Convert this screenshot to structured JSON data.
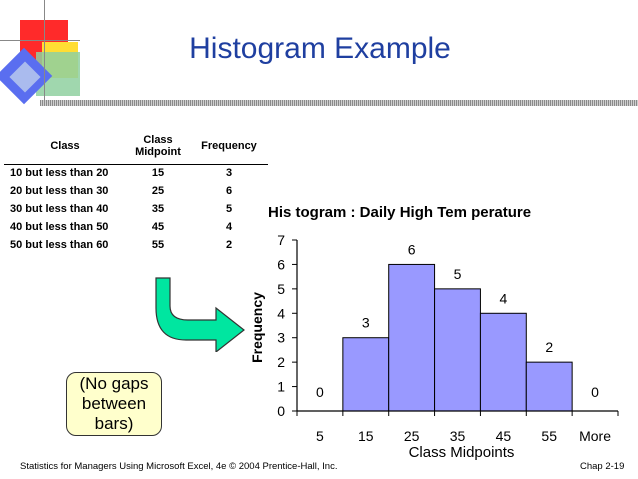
{
  "slide": {
    "title": "Histogram Example",
    "note_lines": [
      "(No gaps",
      "between",
      "bars)"
    ],
    "footer_left": "Statistics for Managers Using Microsoft Excel, 4e © 2004 Prentice-Hall, Inc.",
    "footer_right": "Chap 2-19"
  },
  "table": {
    "headers": [
      "Class",
      "Class Midpoint",
      "Frequency"
    ],
    "rows": [
      [
        "10 but less than 20",
        "15",
        "3"
      ],
      [
        "20 but less than 30",
        "25",
        "6"
      ],
      [
        "30 but less than 40",
        "35",
        "5"
      ],
      [
        "40 but less than 50",
        "45",
        "4"
      ],
      [
        "50 but less than 60",
        "55",
        "2"
      ]
    ]
  },
  "colors": {
    "title": "#1f3fa0",
    "bar_fill": "#9999ff",
    "arrow_fill": "#00e6a0",
    "note_fill": "#ffffcc"
  },
  "chart_data": {
    "type": "bar",
    "title": "His togram : Daily High Tem perature",
    "xlabel": "Class Midpoints",
    "ylabel": "Frequency",
    "categories": [
      "5",
      "15",
      "25",
      "35",
      "45",
      "55",
      "More"
    ],
    "values": [
      0,
      3,
      6,
      5,
      4,
      2,
      0
    ],
    "ylim": [
      0,
      7
    ],
    "yticks": [
      0,
      1,
      2,
      3,
      4,
      5,
      6,
      7
    ],
    "grid": false,
    "legend": "none",
    "bar_gap": 0
  }
}
